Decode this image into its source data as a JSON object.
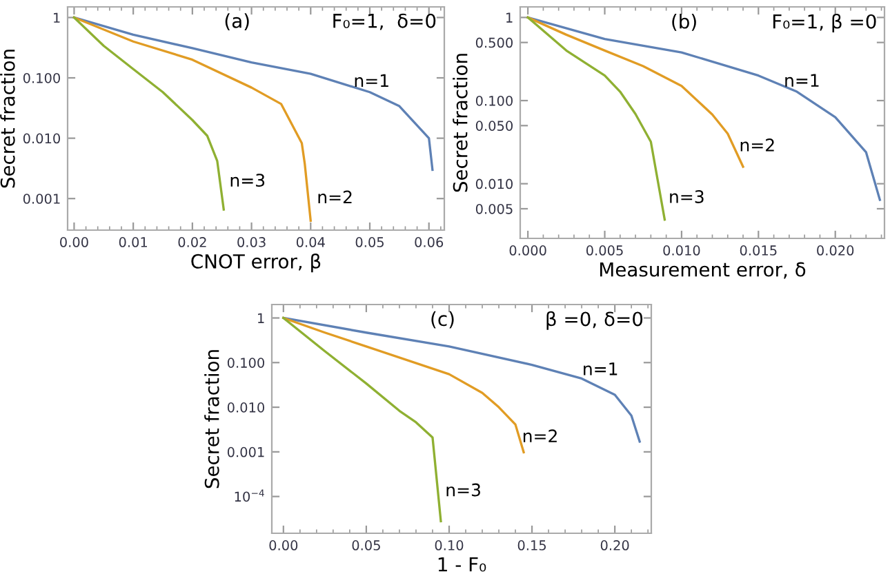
{
  "chart_data": [
    {
      "type": "line",
      "xlabel": "CNOT error, β",
      "ylabel": "Secret fraction",
      "log": "y",
      "xlim": [
        -0.0011,
        0.0626
      ],
      "ylim": [
        0.0003,
        1.5
      ],
      "xticks": [
        {
          "value": 0,
          "label": "0.00"
        },
        0.01,
        0.02,
        0.03,
        0.04,
        0.05,
        0.06
      ],
      "yticks": [
        {
          "value": 0.001,
          "label": "0.001"
        },
        {
          "value": 0.01,
          "label": "0.010"
        },
        {
          "value": 0.1,
          "label": "0.100"
        },
        1
      ],
      "series": [
        {
          "color": "#5e81b5",
          "x": [
            0,
            0.01,
            0.02,
            0.03,
            0.04,
            0.05,
            0.055,
            0.06,
            0.0606
          ],
          "values": [
            1,
            0.52,
            0.31,
            0.18,
            0.117,
            0.058,
            0.034,
            0.01,
            0.003
          ]
        },
        {
          "color": "#e19c24",
          "x": [
            0,
            0.01,
            0.02,
            0.03,
            0.035,
            0.0385,
            0.039,
            0.04
          ],
          "values": [
            1,
            0.4,
            0.2,
            0.069,
            0.037,
            0.0083,
            0.0038,
            0.00043
          ]
        },
        {
          "color": "#8fb032",
          "x": [
            0,
            0.005,
            0.01,
            0.015,
            0.02,
            0.0225,
            0.0242,
            0.0253
          ],
          "values": [
            1,
            0.34,
            0.14,
            0.058,
            0.02,
            0.011,
            0.0042,
            0.00066
          ]
        }
      ],
      "annotations": [
        "(a)",
        "F₀=1,  δ=0",
        {
          "text": "n=1",
          "x": 0.0466,
          "y": 0.085
        },
        {
          "text": "n=2",
          "x": 0.0404,
          "y": 0.001
        },
        {
          "text": "n=3",
          "x": 0.0256,
          "y": 0.0019
        }
      ]
    },
    {
      "type": "line",
      "xlabel": "Measurement error, δ",
      "ylabel": "Secret fraction",
      "log": "y",
      "xlim": [
        -0.0005,
        0.0232
      ],
      "ylim": [
        0.0022,
        1.34
      ],
      "xticks": [
        {
          "value": 0,
          "label": "0.000"
        },
        0.005,
        {
          "value": 0.01,
          "label": "0.010"
        },
        0.015,
        {
          "value": 0.02,
          "label": "0.020"
        }
      ],
      "yticks": [
        0.005,
        {
          "value": 0.01,
          "label": "0.010"
        },
        {
          "value": 0.05,
          "label": "0.050"
        },
        {
          "value": 0.1,
          "label": "0.100"
        },
        {
          "value": 0.5,
          "label": "0.500"
        },
        1
      ],
      "series": [
        {
          "color": "#5e81b5",
          "x": [
            0,
            0.005,
            0.01,
            0.015,
            0.0175,
            0.02,
            0.022,
            0.0229
          ],
          "values": [
            1,
            0.55,
            0.38,
            0.2,
            0.128,
            0.063,
            0.024,
            0.0064
          ]
        },
        {
          "color": "#e19c24",
          "x": [
            0,
            0.0025,
            0.005,
            0.0075,
            0.01,
            0.012,
            0.013,
            0.014
          ],
          "values": [
            1,
            0.62,
            0.4,
            0.26,
            0.15,
            0.068,
            0.04,
            0.016
          ]
        },
        {
          "color": "#8fb032",
          "x": [
            0,
            0.0025,
            0.005,
            0.006,
            0.007,
            0.008,
            0.0089
          ],
          "values": [
            1,
            0.4,
            0.2,
            0.128,
            0.069,
            0.032,
            0.0037
          ]
        }
      ],
      "annotations": [
        "(b)",
        "F₀=1, β =0",
        {
          "text": "n=1",
          "x": 0.0164,
          "y": 0.168
        },
        {
          "text": "n=2",
          "x": 0.0135,
          "y": 0.028
        },
        {
          "text": "n=3",
          "x": 0.0089,
          "y": 0.0067
        }
      ]
    },
    {
      "type": "line",
      "xlabel": "1 - F₀",
      "ylabel": "Secret fraction",
      "log": "y",
      "xlim": [
        -0.007,
        0.222
      ],
      "ylim": [
        1.5e-05,
        2
      ],
      "xticks": [
        {
          "value": 0,
          "label": "0.00"
        },
        0.05,
        {
          "value": 0.1,
          "label": "0.10"
        },
        0.15,
        {
          "value": 0.2,
          "label": "0.20"
        }
      ],
      "yticks": [
        {
          "value": 0.0001,
          "label": "10$^{−4}$"
        },
        {
          "value": 0.001,
          "label": "0.001"
        },
        {
          "value": 0.01,
          "label": "0.010"
        },
        {
          "value": 0.1,
          "label": "0.100"
        },
        1
      ],
      "series": [
        {
          "color": "#5e81b5",
          "x": [
            0,
            0.05,
            0.1,
            0.15,
            0.18,
            0.2,
            0.21,
            0.215
          ],
          "values": [
            1,
            0.47,
            0.23,
            0.089,
            0.044,
            0.019,
            0.0065,
            0.0017
          ]
        },
        {
          "color": "#e19c24",
          "x": [
            0,
            0.025,
            0.05,
            0.1,
            0.12,
            0.13,
            0.14,
            0.145
          ],
          "values": [
            1,
            0.47,
            0.23,
            0.055,
            0.021,
            0.01,
            0.0041,
            0.00098
          ]
        },
        {
          "color": "#8fb032",
          "x": [
            0,
            0.025,
            0.05,
            0.07,
            0.08,
            0.09,
            0.095
          ],
          "values": [
            1,
            0.18,
            0.034,
            0.0083,
            0.0046,
            0.0021,
            2.8e-05
          ]
        }
      ],
      "annotations": [
        "(c)",
        "β =0, δ=0",
        {
          "text": "n=1",
          "x": 0.178,
          "y": 0.067
        },
        {
          "text": "n=2",
          "x": 0.1417,
          "y": 0.0021
        },
        {
          "text": "n=3",
          "x": 0.0953,
          "y": 0.00013
        }
      ]
    }
  ]
}
